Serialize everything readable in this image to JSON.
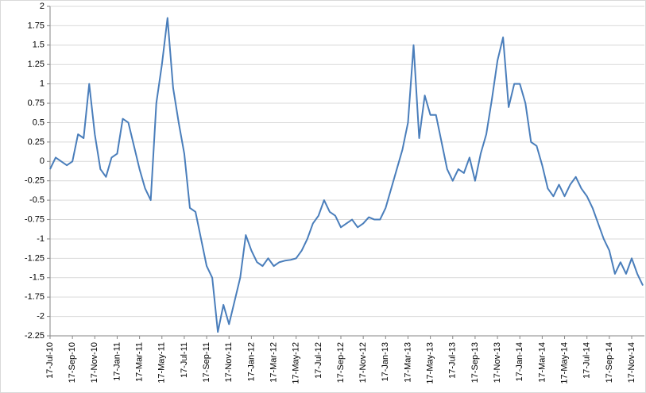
{
  "chart_data": {
    "type": "line",
    "categories": [
      "17-Jul-10",
      null,
      null,
      null,
      "17-Sep-10",
      null,
      null,
      null,
      "17-Nov-10",
      null,
      null,
      null,
      "17-Jan-11",
      null,
      null,
      null,
      "17-Mar-11",
      null,
      null,
      null,
      "17-May-11",
      null,
      null,
      null,
      "17-Jul-11",
      null,
      null,
      null,
      "17-Sep-11",
      null,
      null,
      null,
      "17-Nov-11",
      null,
      null,
      null,
      "17-Jan-12",
      null,
      null,
      null,
      "17-Mar-12",
      null,
      null,
      null,
      "17-May-12",
      null,
      null,
      null,
      "17-Jul-12",
      null,
      null,
      null,
      "17-Sep-12",
      null,
      null,
      null,
      "17-Nov-12",
      null,
      null,
      null,
      "17-Jan-13",
      null,
      null,
      null,
      "17-Mar-13",
      null,
      null,
      null,
      "17-May-13",
      null,
      null,
      null,
      "17-Jul-13",
      null,
      null,
      null,
      "17-Sep-13",
      null,
      null,
      null,
      "17-Nov-13",
      null,
      null,
      null,
      "17-Jan-14",
      null,
      null,
      null,
      "17-Mar-14",
      null,
      null,
      null,
      "17-May-14",
      null,
      null,
      null,
      "17-Jul-14",
      null,
      null,
      null,
      "17-Sep-14",
      null,
      null,
      null,
      "17-Nov-14",
      null,
      null
    ],
    "values": [
      -0.1,
      0.05,
      0,
      -0.05,
      0,
      0.35,
      0.3,
      1.0,
      0.35,
      -0.1,
      -0.2,
      0.05,
      0.1,
      0.55,
      0.5,
      0.2,
      -0.1,
      -0.35,
      -0.5,
      0.75,
      1.25,
      1.85,
      0.95,
      0.5,
      0.1,
      -0.6,
      -0.65,
      -1.0,
      -1.35,
      -1.5,
      -2.2,
      -1.85,
      -2.1,
      -1.8,
      -1.5,
      -0.95,
      -1.15,
      -1.3,
      -1.35,
      -1.25,
      -1.35,
      -1.3,
      -1.28,
      -1.27,
      -1.25,
      -1.15,
      -1.0,
      -0.8,
      -0.7,
      -0.5,
      -0.65,
      -0.7,
      -0.85,
      -0.8,
      -0.75,
      -0.85,
      -0.8,
      -0.72,
      -0.75,
      -0.75,
      -0.6,
      -0.35,
      -0.1,
      0.15,
      0.5,
      1.5,
      0.3,
      0.85,
      0.6,
      0.6,
      0.25,
      -0.1,
      -0.25,
      -0.1,
      -0.15,
      0.05,
      -0.25,
      0.1,
      0.35,
      0.8,
      1.3,
      1.6,
      0.7,
      1.0,
      1.0,
      0.75,
      0.25,
      0.2,
      -0.05,
      -0.35,
      -0.45,
      -0.3,
      -0.45,
      -0.3,
      -0.2,
      -0.35,
      -0.45,
      -0.6,
      -0.8,
      -1.0,
      -1.15,
      -1.45,
      -1.3,
      -1.45,
      -1.25,
      -1.45,
      -1.6
    ],
    "color": "#4a7ebb",
    "ylim": [
      -2.25,
      2
    ],
    "yticks": [
      2,
      1.75,
      1.5,
      1.25,
      1,
      0.75,
      0.5,
      0.25,
      0,
      -0.25,
      -0.5,
      -0.75,
      -1,
      -1.25,
      -1.5,
      -1.75,
      -2,
      -2.25
    ],
    "grid": true
  }
}
